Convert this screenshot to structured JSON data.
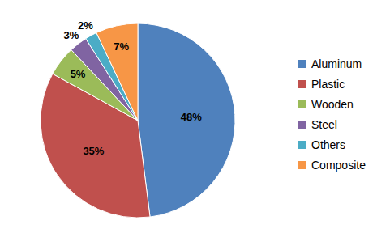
{
  "chart_data": {
    "type": "pie",
    "categories": [
      "Aluminum",
      "Plastic",
      "Wooden",
      "Steel",
      "Others",
      "Composite"
    ],
    "values": [
      48,
      35,
      5,
      3,
      2,
      7
    ],
    "value_labels": [
      "48%",
      "35%",
      "5%",
      "3%",
      "2%",
      "7%"
    ],
    "colors": [
      "#4f81bd",
      "#c0504d",
      "#9bbb59",
      "#8064a2",
      "#4bacc6",
      "#f79646"
    ],
    "data_labels": true,
    "legend": "right"
  }
}
